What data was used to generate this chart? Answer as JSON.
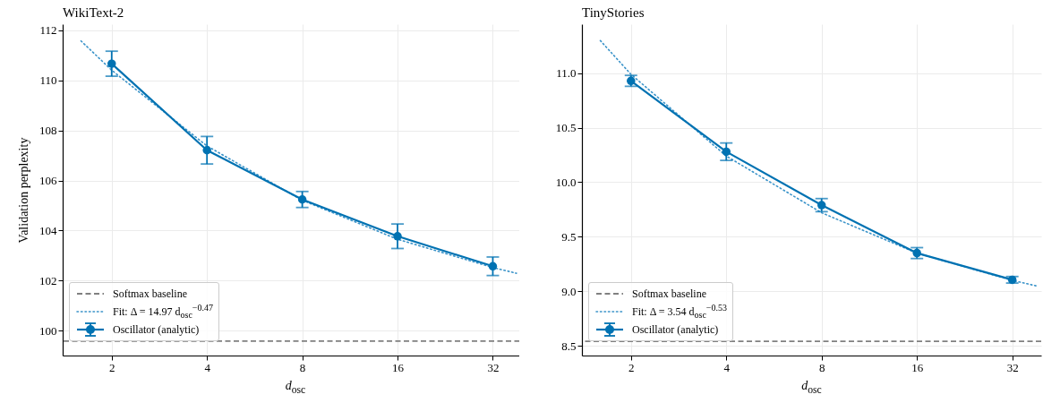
{
  "chart_data": [
    {
      "type": "line",
      "title": "WikiText-2",
      "xlabel": "d$_{osc}$",
      "ylabel": "Validation perplexity",
      "log": "x",
      "xlim": [
        1.4,
        41.4
      ],
      "xticks": [
        2,
        4,
        8,
        16,
        32
      ],
      "ylim": [
        99,
        112.25
      ],
      "yticks": [
        100,
        102,
        104,
        106,
        108,
        110,
        112
      ],
      "grid": true,
      "legend": "bottom left",
      "ref_lines": [
        {
          "axis": "y",
          "value": 99.58,
          "label": "Softmax baseline",
          "color": "#808080",
          "line_style": "dashed"
        }
      ],
      "series": [
        {
          "name": "Fit: Δ = 14.97 d$_{osc}$$^{−0.47}$",
          "type": "line",
          "color": "#3a93c9",
          "marker": "none",
          "line_style": "dotted",
          "x": [
            1.6,
            2,
            4,
            8,
            16,
            32,
            38
          ],
          "values": [
            111.58,
            110.41,
            107.38,
            105.21,
            103.65,
            102.52,
            102.29
          ]
        },
        {
          "name": "Oscillator (analytic)",
          "type": "line",
          "color": "#0072b2",
          "marker": "circle",
          "line_style": "solid",
          "x": [
            2,
            4,
            8,
            16,
            32
          ],
          "values": [
            110.67,
            107.21,
            105.24,
            103.77,
            102.57
          ],
          "errors": [
            0.5,
            0.55,
            0.32,
            0.49,
            0.37
          ]
        }
      ]
    },
    {
      "type": "line",
      "title": "TinyStories",
      "xlabel": "d$_{osc}$",
      "log": "x",
      "xlim": [
        1.4,
        39.5
      ],
      "xticks": [
        2,
        4,
        8,
        16,
        32
      ],
      "ylim": [
        8.41,
        11.45
      ],
      "yticks": [
        8.5,
        {
          "value": 9,
          "label": "9.0"
        },
        9.5,
        {
          "value": 10,
          "label": "10.0"
        },
        10.5,
        {
          "value": 11,
          "label": "11.0"
        }
      ],
      "grid": true,
      "legend": "bottom left",
      "ref_lines": [
        {
          "axis": "y",
          "value": 8.54,
          "label": "Softmax baseline",
          "color": "#808080",
          "line_style": "dashed"
        }
      ],
      "series": [
        {
          "name": "Fit: Δ = 3.54 d$_{osc}$$^{−0.53}$",
          "type": "line",
          "color": "#3a93c9",
          "marker": "none",
          "line_style": "dotted",
          "x": [
            1.6,
            2,
            4,
            8,
            16,
            32,
            38
          ],
          "values": [
            11.3,
            10.99,
            10.24,
            9.72,
            9.35,
            9.1,
            9.05
          ]
        },
        {
          "name": "Oscillator (analytic)",
          "type": "line",
          "color": "#0072b2",
          "marker": "circle",
          "line_style": "solid",
          "x": [
            2,
            4,
            8,
            16,
            32
          ],
          "values": [
            10.93,
            10.28,
            9.79,
            9.35,
            9.105
          ],
          "errors": [
            0.05,
            0.08,
            0.06,
            0.05,
            0.03
          ]
        }
      ]
    }
  ]
}
